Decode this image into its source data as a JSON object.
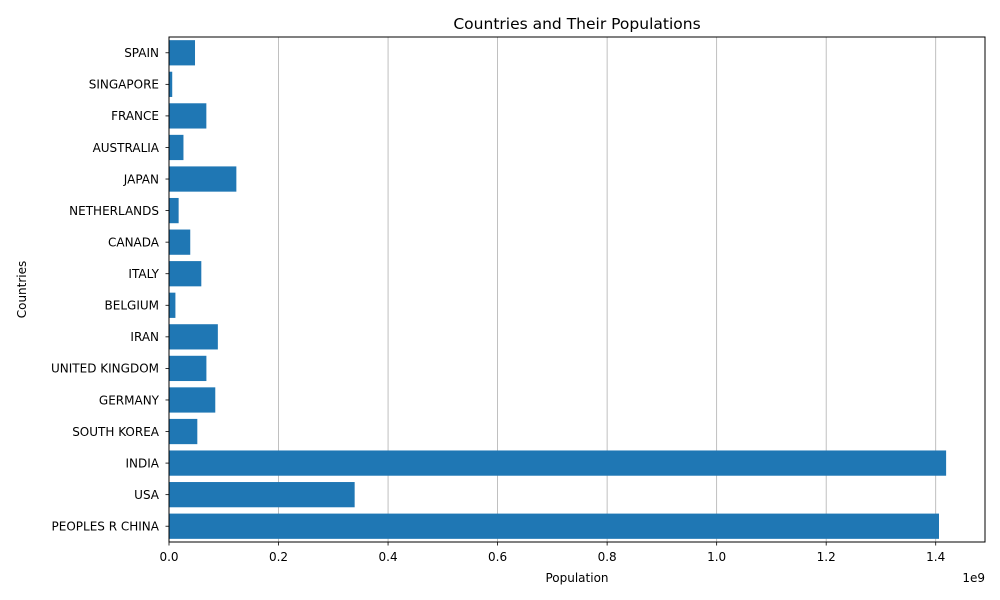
{
  "chart_data": {
    "type": "bar",
    "orientation": "horizontal",
    "title": "Countries and Their Populations",
    "xlabel": "Population",
    "ylabel": "Countries",
    "offset_label": "1e9",
    "categories": [
      "PEOPLES R CHINA",
      "USA",
      "INDIA",
      "SOUTH KOREA",
      "GERMANY",
      "UNITED KINGDOM",
      "IRAN",
      "BELGIUM",
      "ITALY",
      "CANADA",
      "NETHERLANDS",
      "JAPAN",
      "AUSTRALIA",
      "FRANCE",
      "SINGAPORE",
      "SPAIN"
    ],
    "values": [
      1406000000,
      339000000,
      1419000000,
      51700000,
      84500000,
      68300000,
      89200000,
      11700000,
      59000000,
      38800000,
      17600000,
      123000000,
      26400000,
      68200000,
      5900000,
      47500000
    ],
    "xlim": [
      0,
      1490000000
    ],
    "xticks": [
      0,
      200000000,
      400000000,
      600000000,
      800000000,
      1000000000,
      1200000000,
      1400000000
    ],
    "xtick_labels": [
      "0.0",
      "0.2",
      "0.4",
      "0.6",
      "0.8",
      "1.0",
      "1.2",
      "1.4"
    ],
    "grid": "vertical",
    "bar_color": "#1f77b4"
  }
}
